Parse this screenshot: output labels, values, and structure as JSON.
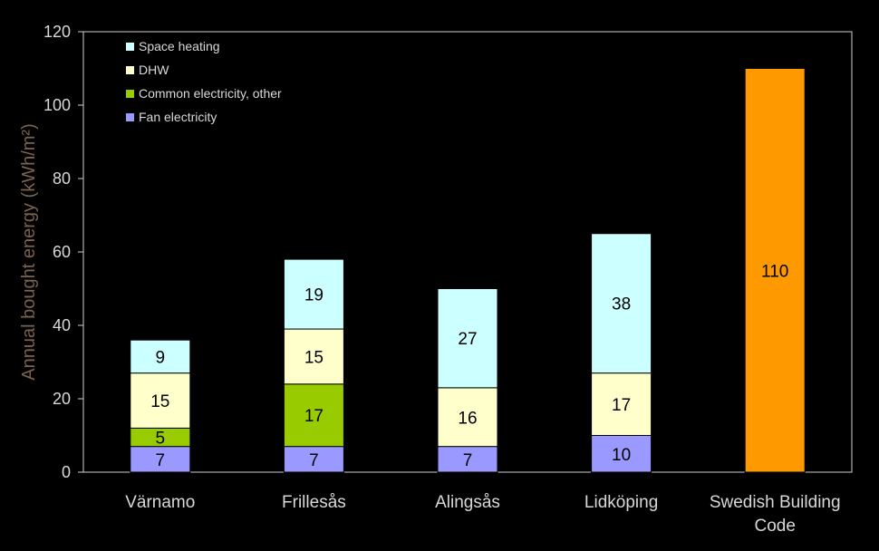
{
  "chart_data": {
    "type": "bar",
    "stacked": true,
    "ylabel": "Annual bought energy (kWh/m²)",
    "ylim": [
      0,
      120
    ],
    "yticks": [
      0,
      20,
      40,
      60,
      80,
      100,
      120
    ],
    "grid": false,
    "legend_position": "top-left",
    "categories": [
      "Värnamo",
      "Frillesås",
      "Alingsås",
      "Lidköping",
      "Swedish Building Code"
    ],
    "series": [
      {
        "name": "Fan electricity",
        "color": "#9999ff",
        "values": [
          7,
          7,
          7,
          10,
          null
        ]
      },
      {
        "name": "Common electricity, other",
        "color": "#99cc00",
        "values": [
          5,
          17,
          null,
          null,
          null
        ]
      },
      {
        "name": "DHW",
        "color": "#ffffcc",
        "values": [
          15,
          15,
          16,
          17,
          null
        ]
      },
      {
        "name": "Space heating",
        "color": "#ccffff",
        "values": [
          9,
          19,
          27,
          38,
          null
        ]
      },
      {
        "name": "",
        "color": "#ff9900",
        "values": [
          null,
          null,
          null,
          null,
          110
        ]
      }
    ],
    "legend_order": [
      "Space heating",
      "DHW",
      "Common electricity, other",
      "Fan electricity"
    ]
  }
}
